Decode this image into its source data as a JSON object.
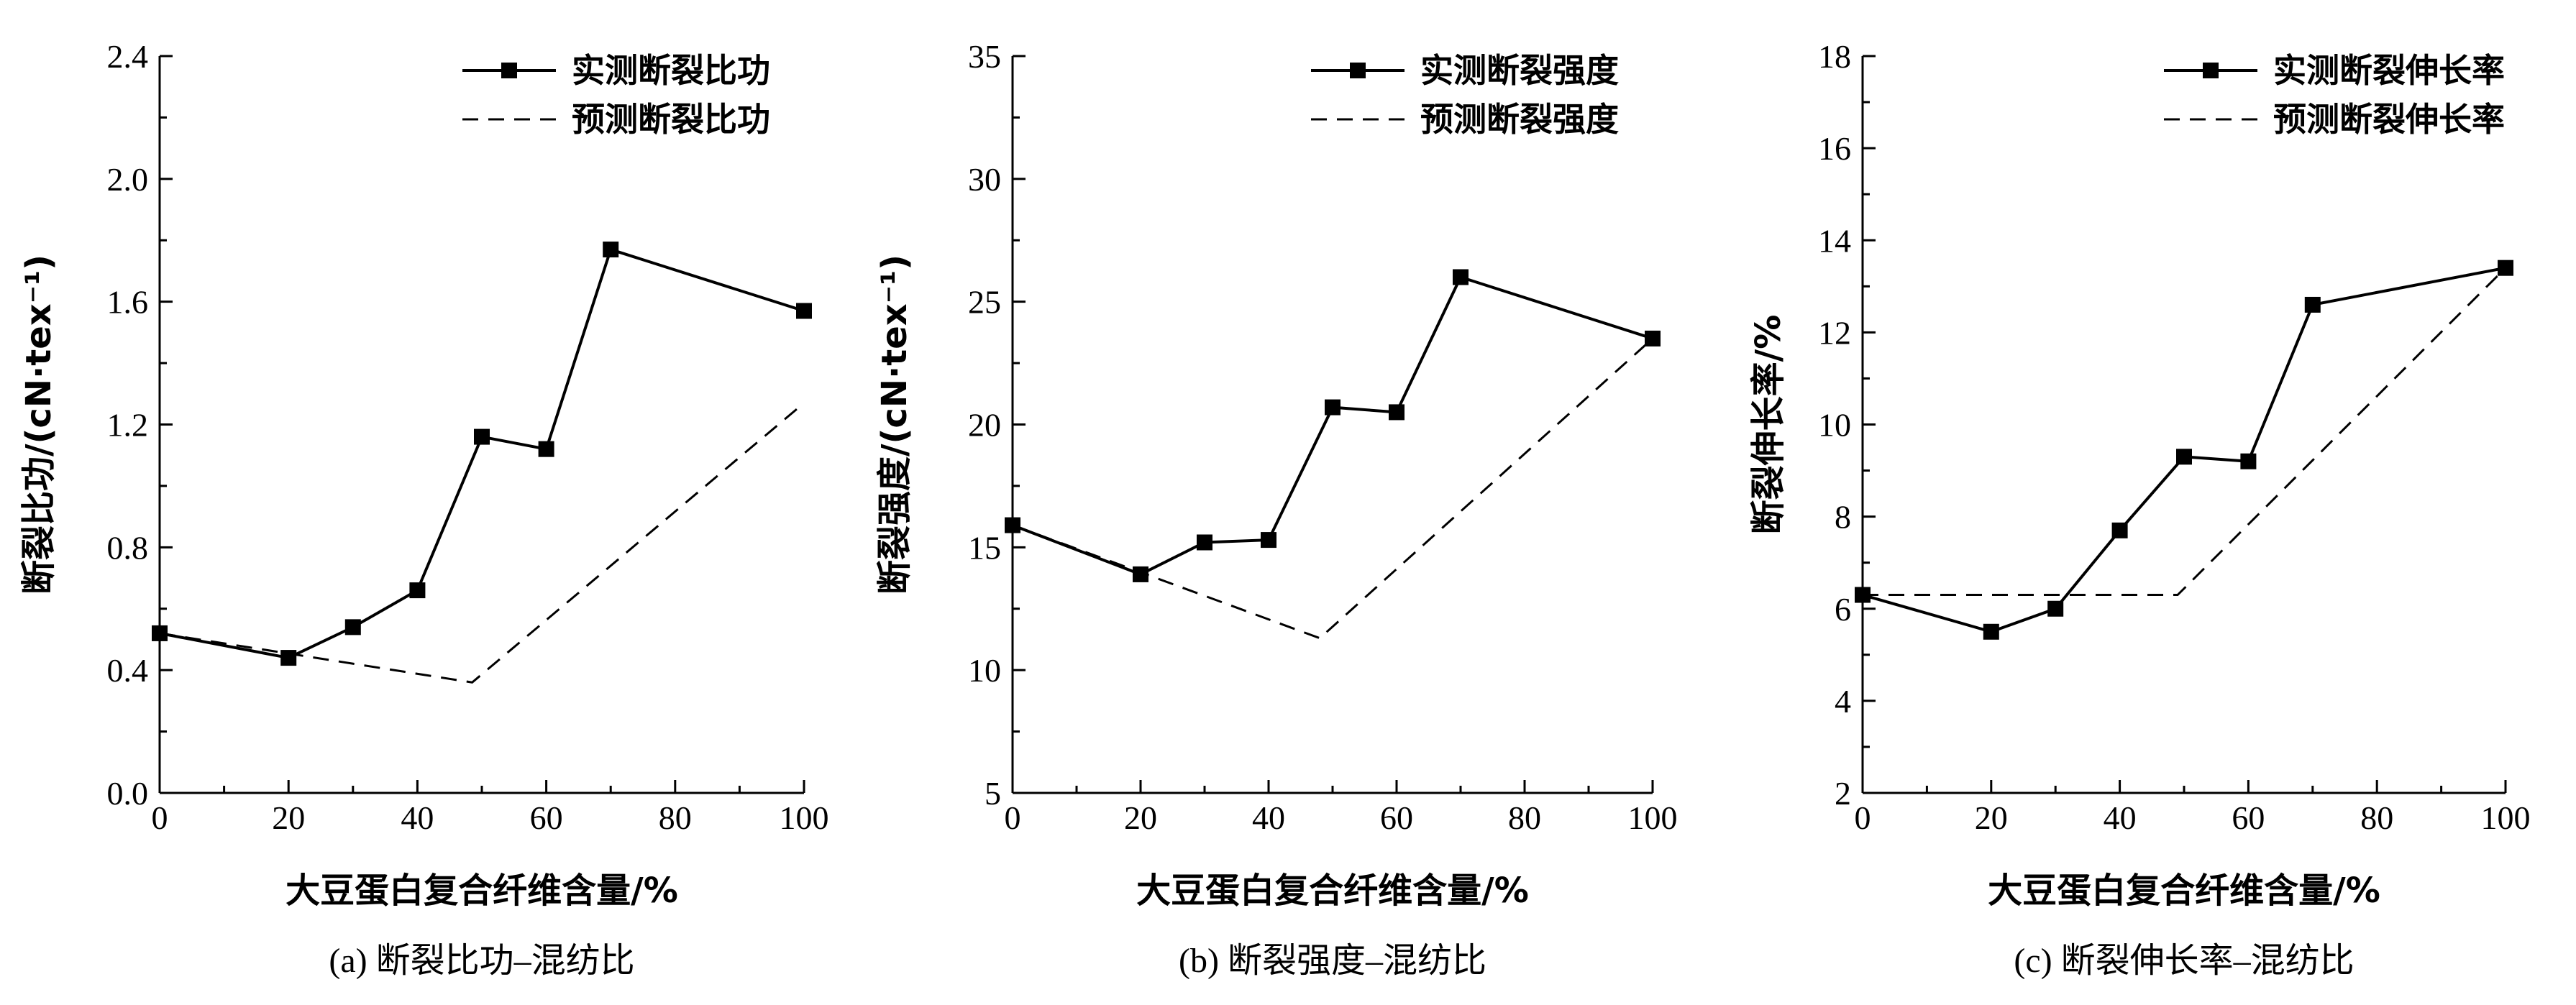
{
  "chart_data": [
    {
      "type": "line",
      "caption": "(a) 断裂比功–混纺比",
      "xlabel": "大豆蛋白复合纤维含量/%",
      "ylabel": "断裂比功/(cN·tex⁻¹)",
      "xlim": [
        0,
        100
      ],
      "ylim": [
        0,
        2.4
      ],
      "xticks": [
        "0",
        "20",
        "40",
        "60",
        "80",
        "100"
      ],
      "yticks": [
        "0.0",
        "0.4",
        "0.8",
        "1.2",
        "1.6",
        "2.0",
        "2.4"
      ],
      "legend_position": "top-right",
      "series": [
        {
          "name": "实测断裂比功",
          "style": "solid-square-markers",
          "x": [
            0,
            20,
            30,
            40,
            50,
            60,
            70,
            100
          ],
          "y": [
            0.52,
            0.44,
            0.54,
            0.66,
            1.16,
            1.12,
            1.77,
            1.57
          ]
        },
        {
          "name": "预测断裂比功",
          "style": "dashed",
          "x": [
            0,
            48.5,
            100
          ],
          "y": [
            0.52,
            0.36,
            1.27
          ]
        }
      ]
    },
    {
      "type": "line",
      "caption": "(b) 断裂强度–混纺比",
      "xlabel": "大豆蛋白复合纤维含量/%",
      "ylabel": "断裂强度/(cN·tex⁻¹)",
      "xlim": [
        0,
        100
      ],
      "ylim": [
        5,
        35
      ],
      "xticks": [
        "0",
        "20",
        "40",
        "60",
        "80",
        "100"
      ],
      "yticks": [
        "5",
        "10",
        "15",
        "20",
        "25",
        "30",
        "35"
      ],
      "legend_position": "top-right",
      "series": [
        {
          "name": "实测断裂强度",
          "style": "solid-square-markers",
          "x": [
            0,
            20,
            30,
            40,
            50,
            60,
            70,
            100
          ],
          "y": [
            15.9,
            13.9,
            15.2,
            15.3,
            20.7,
            20.5,
            26.0,
            23.5
          ]
        },
        {
          "name": "预测断裂强度",
          "style": "dashed",
          "x": [
            0,
            48,
            100
          ],
          "y": [
            15.9,
            11.3,
            23.5
          ]
        }
      ]
    },
    {
      "type": "line",
      "caption": "(c) 断裂伸长率–混纺比",
      "xlabel": "大豆蛋白复合纤维含量/%",
      "ylabel": "断裂伸长率/%",
      "xlim": [
        0,
        100
      ],
      "ylim": [
        2,
        18
      ],
      "xticks": [
        "0",
        "20",
        "40",
        "60",
        "80",
        "100"
      ],
      "yticks": [
        "2",
        "4",
        "6",
        "8",
        "10",
        "12",
        "14",
        "16",
        "18"
      ],
      "legend_position": "top-right",
      "series": [
        {
          "name": "实测断裂伸长率",
          "style": "solid-square-markers",
          "x": [
            0,
            20,
            30,
            40,
            50,
            60,
            70,
            100
          ],
          "y": [
            6.3,
            5.5,
            6.0,
            7.7,
            9.3,
            9.2,
            12.6,
            13.4
          ]
        },
        {
          "name": "预测断裂伸长率",
          "style": "dashed",
          "x": [
            0,
            49,
            100
          ],
          "y": [
            6.3,
            6.3,
            13.4
          ]
        }
      ]
    }
  ]
}
